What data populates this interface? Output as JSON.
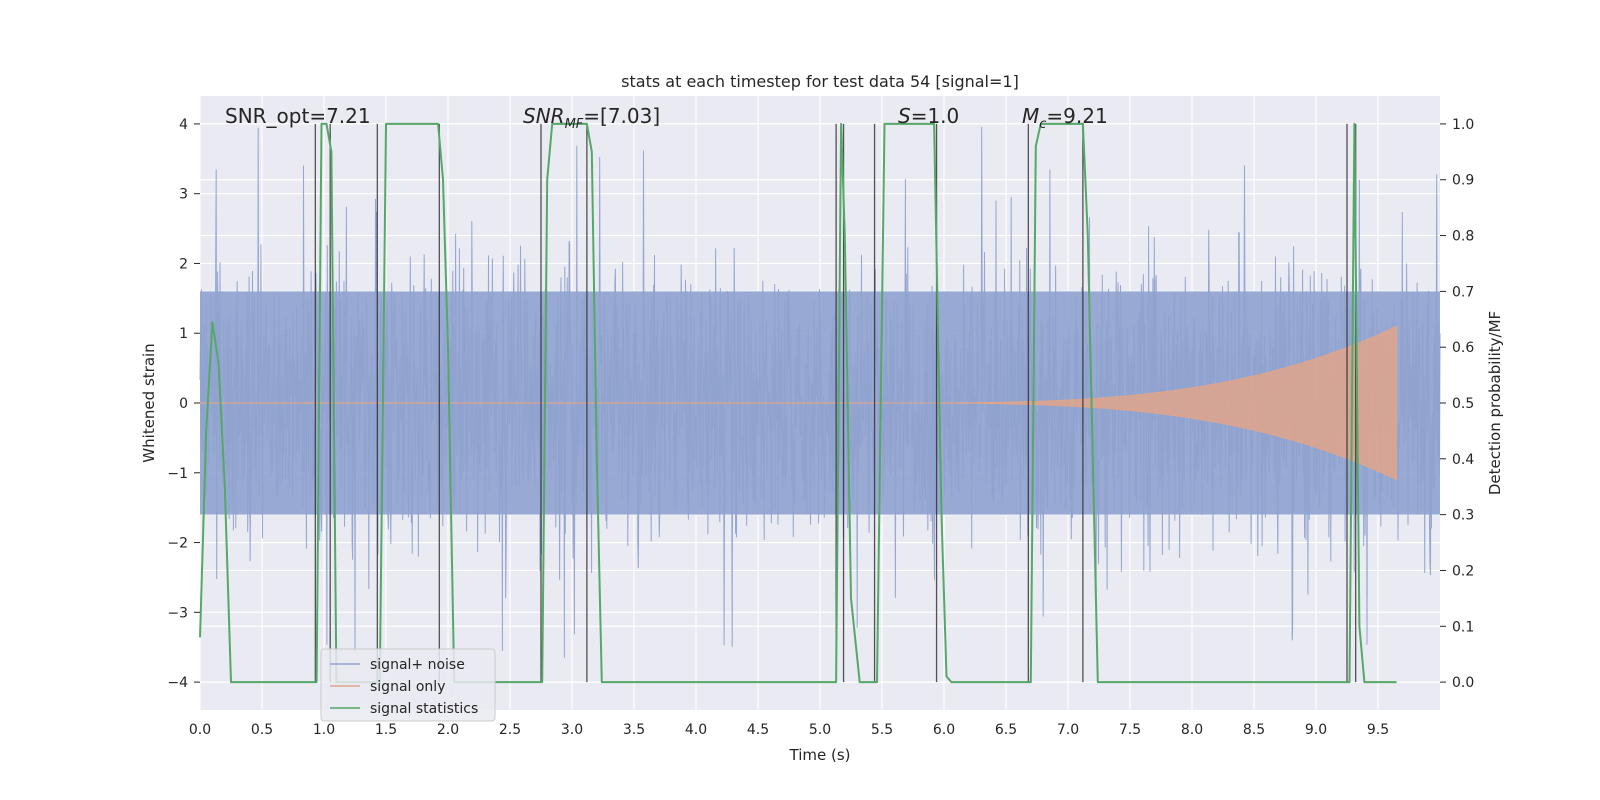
{
  "chart_data": {
    "type": "line",
    "title": "stats at each timestep for test data 54 [signal=1]",
    "xlabel": "Time (s)",
    "ylabel_left": "Whitened strain",
    "ylabel_right": "Detection probability/MF",
    "xlim": [
      0.0,
      10.0
    ],
    "ylim_left": [
      -4.4,
      4.4
    ],
    "ylim_right": [
      -0.05,
      1.05
    ],
    "x_ticks": [
      "0.0",
      "0.5",
      "1.0",
      "1.5",
      "2.0",
      "2.5",
      "3.0",
      "3.5",
      "4.0",
      "4.5",
      "5.0",
      "5.5",
      "6.0",
      "6.5",
      "7.0",
      "7.5",
      "8.0",
      "8.5",
      "9.0",
      "9.5"
    ],
    "y_ticks_left": [
      "4",
      "3",
      "2",
      "1",
      "0",
      "−1",
      "−2",
      "−3",
      "−4"
    ],
    "y_ticks_right": [
      "1.0",
      "0.9",
      "0.8",
      "0.7",
      "0.6",
      "0.5",
      "0.4",
      "0.3",
      "0.2",
      "0.1",
      "0.0"
    ],
    "grid": true,
    "legend_position": "lower-left",
    "annotations": {
      "snr_opt": "SNR_opt=7.21",
      "snr_mf_sym": "SNR",
      "snr_mf_sub": "MF",
      "snr_mf_val": "=[7.03]",
      "s_sym": "S",
      "s_val": "=1.0",
      "mc_sym": "M",
      "mc_sub": "c",
      "mc_val": "=9.21"
    },
    "series": [
      {
        "name": "signal+ noise",
        "color": "#8fa2cf",
        "envelope": {
          "typical_range": [
            -1.6,
            1.6
          ],
          "peak_range": [
            -3.9,
            4.0
          ]
        }
      },
      {
        "name": "signal only",
        "color": "#e0a58b",
        "chirp": {
          "start_x": 5.5,
          "end_x": 9.65,
          "max_amplitude": 1.1
        }
      },
      {
        "name": "signal statistics",
        "color": "#55a868",
        "x": [
          0.0,
          0.05,
          0.1,
          0.15,
          0.2,
          0.25,
          0.94,
          0.98,
          1.02,
          1.06,
          1.1,
          1.45,
          1.5,
          1.55,
          1.6,
          1.65,
          1.7,
          1.75,
          1.8,
          1.85,
          1.9,
          1.92,
          1.96,
          2.0,
          2.05,
          2.1,
          2.5,
          2.76,
          2.8,
          2.84,
          2.88,
          2.92,
          2.96,
          3.0,
          3.04,
          3.08,
          3.12,
          3.16,
          3.2,
          3.24,
          3.5,
          4.0,
          5.13,
          5.17,
          5.2,
          5.25,
          5.32,
          5.46,
          5.52,
          5.56,
          5.6,
          5.92,
          5.98,
          6.02,
          6.06,
          6.7,
          6.74,
          6.78,
          6.82,
          6.86,
          7.12,
          7.16,
          7.24,
          9.27,
          9.31,
          9.35,
          9.39,
          9.44,
          9.5,
          9.65
        ],
        "y": [
          0.08,
          0.45,
          0.645,
          0.57,
          0.35,
          0.0,
          0.0,
          1.0,
          1.0,
          0.95,
          0.0,
          0.0,
          1.0,
          1.0,
          1.0,
          1.0,
          1.0,
          1.0,
          1.0,
          1.0,
          1.0,
          1.0,
          0.9,
          0.6,
          0.0,
          0.0,
          0.0,
          0.0,
          0.9,
          1.0,
          1.0,
          1.0,
          1.0,
          1.0,
          1.0,
          1.0,
          1.0,
          0.95,
          0.4,
          0.0,
          0.0,
          0.0,
          0.0,
          1.0,
          0.8,
          0.15,
          0.0,
          0.0,
          1.0,
          1.0,
          1.0,
          1.0,
          0.3,
          0.01,
          0.0,
          0.0,
          0.96,
          1.0,
          1.0,
          1.0,
          1.0,
          0.8,
          0.0,
          0.0,
          1.0,
          0.1,
          0.0,
          0.0,
          0.0,
          0.0
        ]
      }
    ],
    "vertical_markers": {
      "color": "#2b2b2b",
      "pairs": [
        [
          0.93,
          1.05
        ],
        [
          1.43,
          1.93
        ],
        [
          2.75,
          3.12
        ],
        [
          5.13,
          5.19
        ],
        [
          5.44,
          5.94
        ],
        [
          6.68,
          7.12
        ],
        [
          9.25,
          9.32
        ]
      ],
      "marker_range_right": [
        0.0,
        1.0
      ]
    }
  }
}
